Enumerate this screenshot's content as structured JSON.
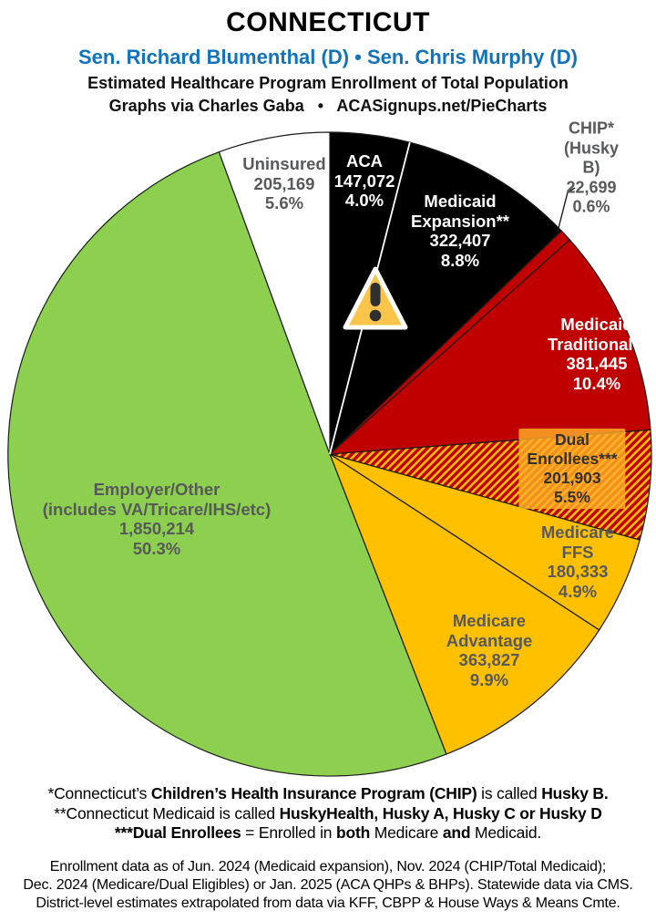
{
  "header": {
    "title": "CONNECTICUT",
    "senators": "Sen. Richard Blumenthal (D) • Sen. Chris Murphy (D)",
    "subtitle": "Estimated Healthcare Program Enrollment of Total Population",
    "credit": "Graphs via Charles Gaba   •   ACASignups.net/PieCharts"
  },
  "chart_data": {
    "type": "pie",
    "title": "Estimated Healthcare Program Enrollment of Total Population — Connecticut",
    "start_angle_deg": 0,
    "direction": "clockwise",
    "total_pct": 100.0,
    "slices": [
      {
        "id": "aca",
        "name": "ACA",
        "value": 147072,
        "pct": 4.0,
        "fill": "#000000",
        "label_color": "#FFFFFF",
        "label_lines": [
          "ACA",
          "147,072",
          "4.0%"
        ]
      },
      {
        "id": "medicaid-expansion",
        "name": "Medicaid Expansion**",
        "value": 322407,
        "pct": 8.8,
        "fill": "#000000",
        "label_color": "#FFFFFF",
        "label_lines": [
          "Medicaid",
          "Expansion**",
          "322,407",
          "8.8%"
        ]
      },
      {
        "id": "chip",
        "name": "CHIP* (Husky B)",
        "value": 22699,
        "pct": 0.6,
        "fill": "#C00000",
        "label_color": "#58595B",
        "label_outside": true,
        "label_lines": [
          "CHIP* (Husky B)",
          "22,699",
          "0.6%"
        ]
      },
      {
        "id": "medicaid-traditional",
        "name": "Medicaid Traditional**",
        "value": 381445,
        "pct": 10.4,
        "fill": "#C00000",
        "label_color": "#FFFFFF",
        "label_lines": [
          "Medicaid",
          "Traditional**",
          "381,445",
          "10.4%"
        ]
      },
      {
        "id": "dual-enrollees",
        "name": "Dual Enrollees***",
        "value": 201903,
        "pct": 5.5,
        "fill": "hatch",
        "label_color": "#33302A",
        "label_lines": [
          "Dual Enrollees***",
          "201,903 5.5%"
        ]
      },
      {
        "id": "medicare-ffs",
        "name": "Medicare FFS",
        "value": 180333,
        "pct": 4.9,
        "fill": "#FFC000",
        "label_color": "#58595B",
        "label_lines": [
          "Medicare FFS",
          "180,333 4.9%"
        ]
      },
      {
        "id": "medicare-advantage",
        "name": "Medicare Advantage",
        "value": 363827,
        "pct": 9.9,
        "fill": "#FFC000",
        "label_color": "#58595B",
        "label_lines": [
          "Medicare",
          "Advantage",
          "363,827",
          "9.9%"
        ]
      },
      {
        "id": "employer-other",
        "name": "Employer/Other (includes VA/Tricare/IHS/etc)",
        "value": 1850214,
        "pct": 50.3,
        "fill": "#8DD04F",
        "label_color": "#58595B",
        "label_lines": [
          "Employer/Other",
          "(includes VA/Tricare/IHS/etc)",
          "1,850,214",
          "50.3%"
        ]
      },
      {
        "id": "uninsured",
        "name": "Uninsured",
        "value": 205169,
        "pct": 5.6,
        "fill": "#FFFFFF",
        "label_color": "#58595B",
        "label_lines": [
          "Uninsured",
          "205,169",
          "5.6%"
        ]
      }
    ],
    "colors": {
      "black": "#000000",
      "red": "#C00000",
      "gold": "#FFC000",
      "green": "#8DD04F",
      "white": "#FFFFFF",
      "hatch": "diagonal red/gold stripes",
      "outline": "#1C1C1C",
      "divider_white": "#FFFFFF",
      "accent_blue": "#1173BB",
      "label_gray": "#58595B",
      "warning_fill": "#FBC54B"
    },
    "legend_position": "labels-on-slices",
    "grid": false
  },
  "footnotes": [
    [
      {
        "t": "*Connecticut’s ",
        "b": false
      },
      {
        "t": "Children’s Health Insurance Program (CHIP)",
        "b": true
      },
      {
        "t": " is called ",
        "b": false
      },
      {
        "t": "Husky B.",
        "b": true
      }
    ],
    [
      {
        "t": "**Connecticut Medicaid is called ",
        "b": false
      },
      {
        "t": "HuskyHealth, Husky A, Husky C or Husky D",
        "b": true
      }
    ],
    [
      {
        "t": "***Dual Enrollees",
        "b": true
      },
      {
        "t": " = Enrolled in ",
        "b": false
      },
      {
        "t": "both",
        "b": true
      },
      {
        "t": " Medicare ",
        "b": false
      },
      {
        "t": "and",
        "b": true
      },
      {
        "t": " Medicaid.",
        "b": false
      }
    ]
  ],
  "source": [
    "Enrollment data as of Jun. 2024 (Medicaid expansion), Nov. 2024 (CHIP/Total Medicaid);",
    "Dec. 2024 (Medicare/Dual Eligibles) or Jan. 2025 (ACA QHPs & BHPs). Statewide data via CMS.",
    "District-level estimates extrapolated from data via KFF, CBPP & House Ways & Means Cmte."
  ]
}
